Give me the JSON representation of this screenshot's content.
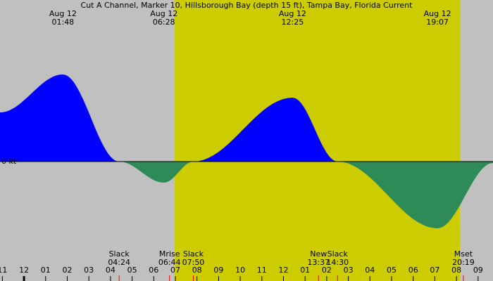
{
  "chart_data": {
    "type": "area",
    "title": "Cut A Channel, Marker 10, Hillsborough Bay (depth 15 ft), Tampa Bay, Florida Current",
    "x": [
      -1.11,
      1.8,
      4.4,
      6.47,
      7.83,
      12.42,
      14.5,
      19.12,
      21.69
    ],
    "series": [
      {
        "values": [
          0.7,
          1.24,
          0,
          -0.3,
          0,
          0.91,
          0,
          -0.95,
          -0.02
        ],
        "flood_color": "#0000ff",
        "ebb_color": "#2e8b57"
      }
    ],
    "xlim": [
      -1.11,
      21.69
    ],
    "ylim": [
      -1.7,
      2.3
    ],
    "yticks": [
      {
        "value": 0,
        "label": "0 kt"
      }
    ],
    "xticks": [
      {
        "value": -1,
        "label": "11"
      },
      {
        "value": 0,
        "label": "12"
      },
      {
        "value": 1,
        "label": "01"
      },
      {
        "value": 2,
        "label": "02"
      },
      {
        "value": 3,
        "label": "03"
      },
      {
        "value": 4,
        "label": "04"
      },
      {
        "value": 5,
        "label": "05"
      },
      {
        "value": 6,
        "label": "06"
      },
      {
        "value": 7,
        "label": "07"
      },
      {
        "value": 8,
        "label": "08"
      },
      {
        "value": 9,
        "label": "09"
      },
      {
        "value": 10,
        "label": "10"
      },
      {
        "value": 11,
        "label": "11"
      },
      {
        "value": 12,
        "label": "12"
      },
      {
        "value": 13,
        "label": "01"
      },
      {
        "value": 14,
        "label": "02"
      },
      {
        "value": 15,
        "label": "03"
      },
      {
        "value": 16,
        "label": "04"
      },
      {
        "value": 17,
        "label": "05"
      },
      {
        "value": 18,
        "label": "06"
      },
      {
        "value": 19,
        "label": "07"
      },
      {
        "value": 20,
        "label": "08"
      },
      {
        "value": 21,
        "label": "09"
      }
    ],
    "daylight": [
      6.97,
      20.16
    ],
    "top_events": [
      {
        "date": "Aug 12",
        "time": "01:48",
        "x": 1.8
      },
      {
        "date": "Aug 12",
        "time": "06:28",
        "x": 6.47
      },
      {
        "date": "Aug 12",
        "time": "12:25",
        "x": 12.42
      },
      {
        "date": "Aug 12",
        "time": "19:07",
        "x": 19.12
      }
    ],
    "bottom_events": [
      {
        "label": "Slack",
        "time": "04:24",
        "x": 4.4
      },
      {
        "label": "Mrise",
        "time": "06:44",
        "x": 6.73
      },
      {
        "label": "Slack",
        "time": "07:50",
        "x": 7.83
      },
      {
        "label": "New",
        "time": "13:37",
        "x": 13.62
      },
      {
        "label": "Slack",
        "time": "14:30",
        "x": 14.5
      },
      {
        "label": "Mset",
        "time": "20:19",
        "x": 20.32
      }
    ]
  }
}
